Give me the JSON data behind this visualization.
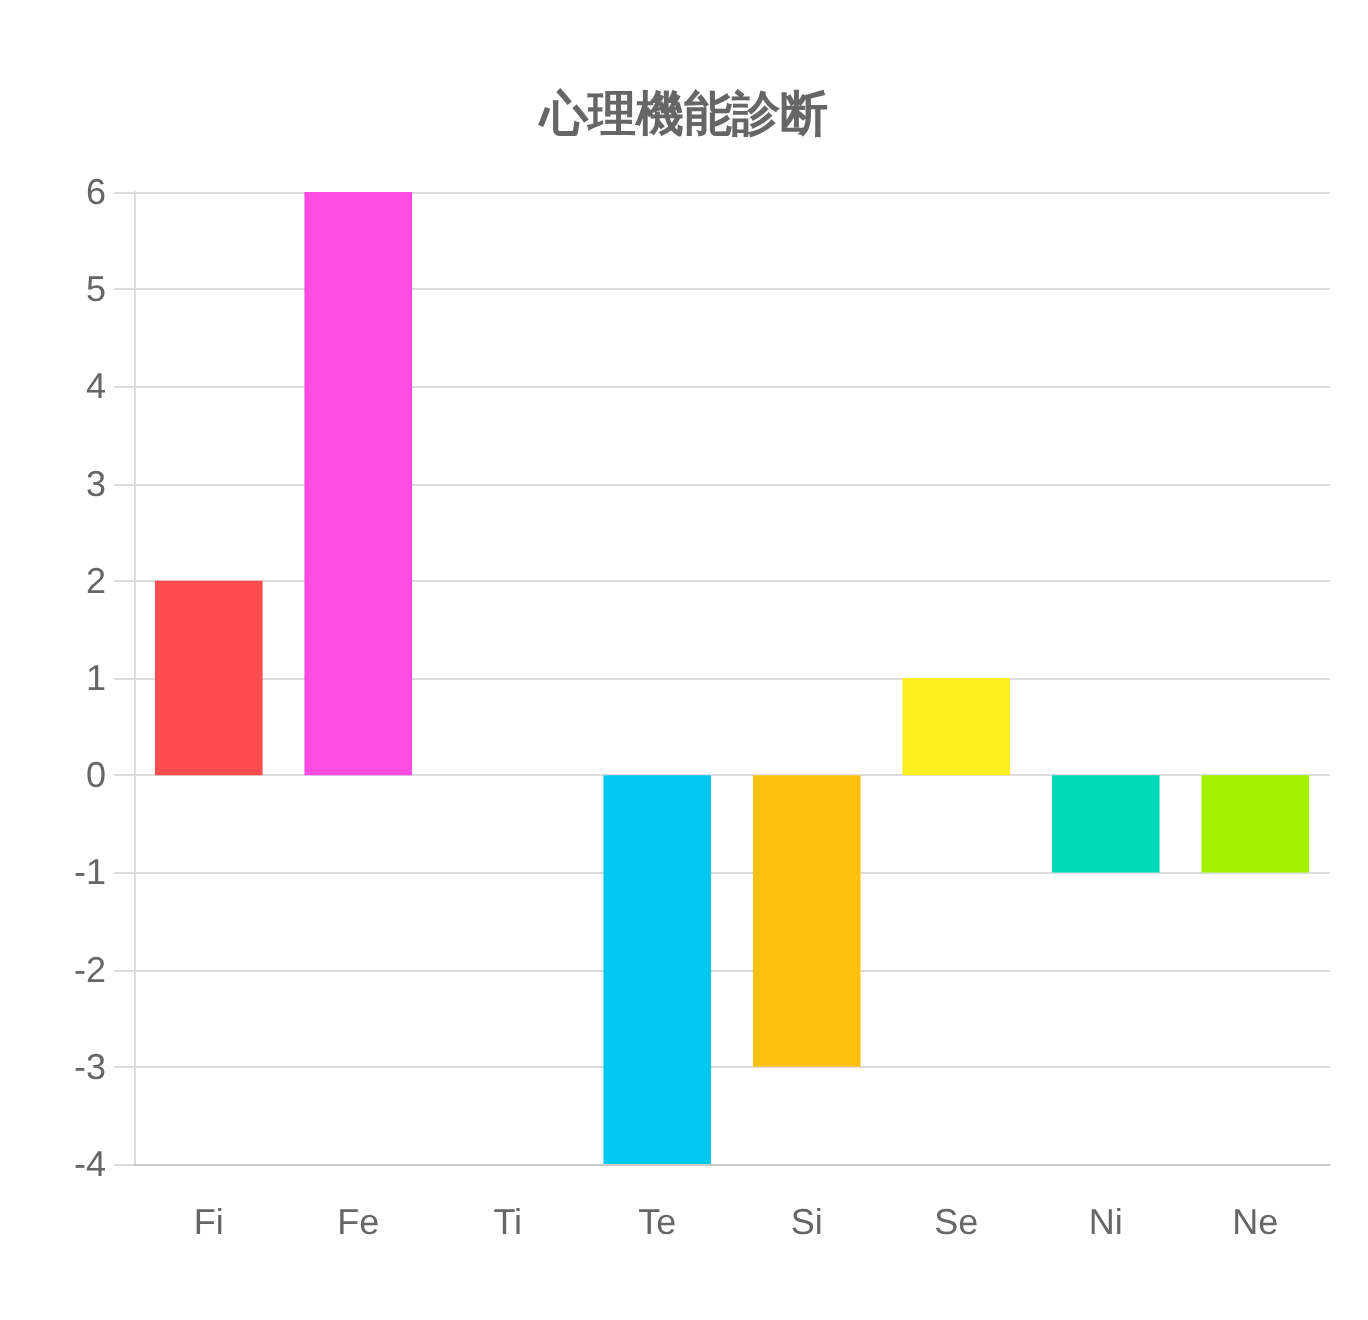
{
  "chart_data": {
    "type": "bar",
    "title": "心理機能診断",
    "categories": [
      "Fi",
      "Fe",
      "Ti",
      "Te",
      "Si",
      "Se",
      "Ni",
      "Ne"
    ],
    "values": [
      2,
      6,
      0,
      -4,
      -3,
      1,
      -1,
      -1
    ],
    "colors": [
      "#ff4d4f",
      "#ff4de3",
      "#9966ff",
      "#00c8f0",
      "#ffc110",
      "#ffee22",
      "#00d9b8",
      "#a3f000"
    ],
    "ylim": [
      -4,
      6
    ],
    "yticks": [
      -4,
      -3,
      -2,
      -1,
      0,
      1,
      2,
      3,
      4,
      5,
      6
    ],
    "grid": "y"
  }
}
